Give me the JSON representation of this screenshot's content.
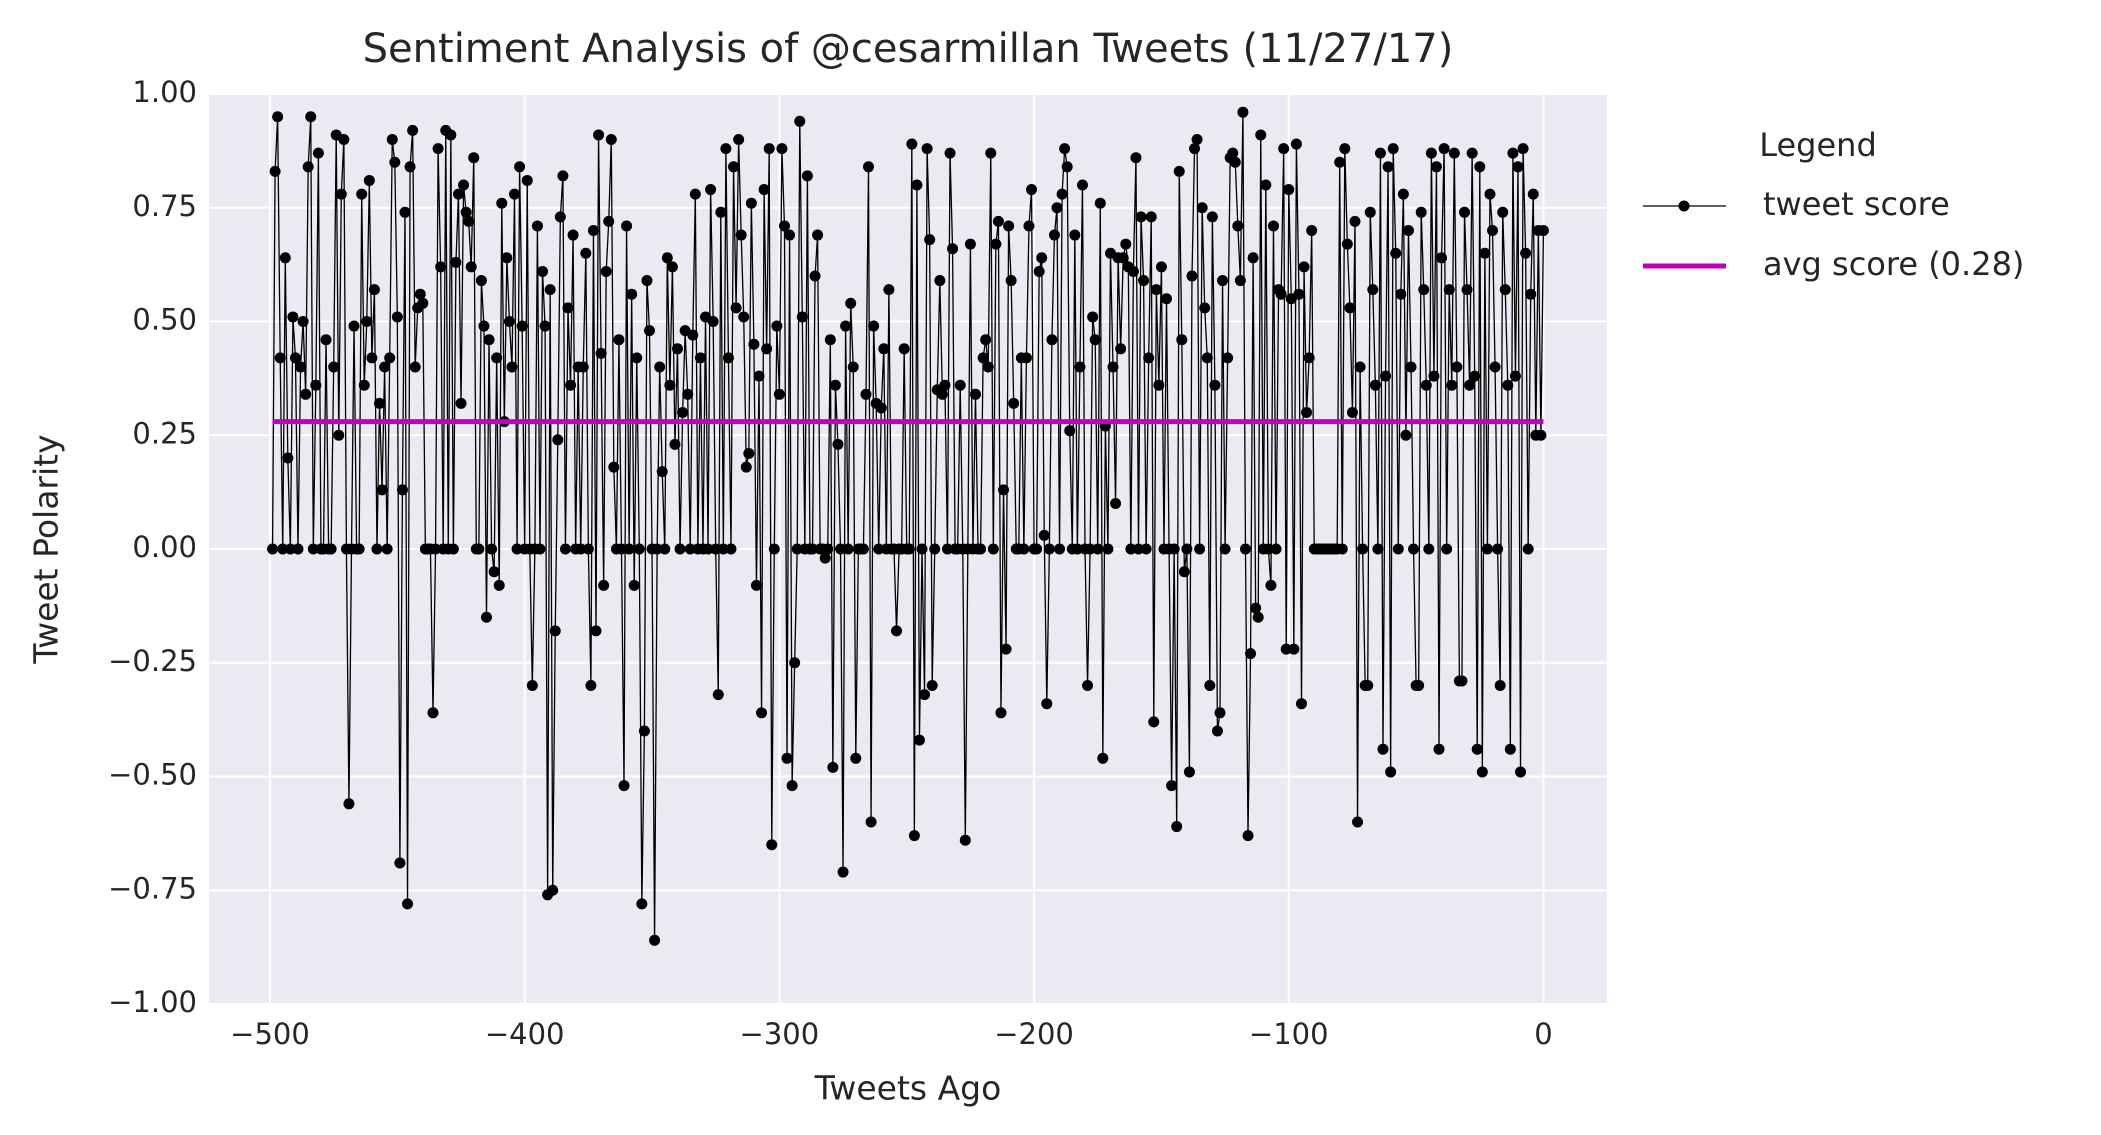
{
  "chart_data": {
    "type": "line",
    "title": "Sentiment Analysis of @cesarmillan Tweets (11/27/17)",
    "x_label": "Tweets Ago",
    "y_label": "Tweet Polarity",
    "legend_title": "Legend",
    "legend": "upper right outside",
    "grid": true,
    "xlim": [
      -523.95,
      24.95
    ],
    "ylim": [
      -1,
      1
    ],
    "xticks": [
      {
        "value": -500,
        "label": "−500"
      },
      {
        "value": -400,
        "label": "−400"
      },
      {
        "value": -300,
        "label": "−300"
      },
      {
        "value": -200,
        "label": "−200"
      },
      {
        "value": -100,
        "label": "−100"
      },
      0
    ],
    "yticks": [
      {
        "value": -1,
        "label": "−1.00"
      },
      {
        "value": -0.75,
        "label": "−0.75"
      },
      {
        "value": -0.5,
        "label": "−0.50"
      },
      {
        "value": -0.25,
        "label": "−0.25"
      },
      {
        "value": 0,
        "label": "0.00"
      },
      {
        "value": 0.25,
        "label": "0.25"
      },
      {
        "value": 0.5,
        "label": "0.50"
      },
      {
        "value": 0.75,
        "label": "0.75"
      },
      {
        "value": 1,
        "label": "1.00"
      }
    ],
    "x": [
      -499,
      -498,
      -497,
      -496,
      -495,
      -494,
      -493,
      -492,
      -491,
      -490,
      -489,
      -488,
      -487,
      -486,
      -485,
      -484,
      -483,
      -482,
      -481,
      -480,
      -479,
      -478,
      -477,
      -476,
      -475,
      -474,
      -473,
      -472,
      -471,
      -470,
      -469,
      -468,
      -467,
      -466,
      -465,
      -464,
      -463,
      -462,
      -461,
      -460,
      -459,
      -458,
      -457,
      -456,
      -455,
      -454,
      -453,
      -452,
      -451,
      -450,
      -449,
      -448,
      -447,
      -446,
      -445,
      -444,
      -443,
      -442,
      -441,
      -440,
      -439,
      -438,
      -437,
      -436,
      -435,
      -434,
      -433,
      -432,
      -431,
      -430,
      -429,
      -428,
      -427,
      -426,
      -425,
      -424,
      -423,
      -422,
      -421,
      -420,
      -419,
      -418,
      -417,
      -416,
      -415,
      -414,
      -413,
      -412,
      -411,
      -410,
      -409,
      -408,
      -407,
      -406,
      -405,
      -404,
      -403,
      -402,
      -401,
      -400,
      -399,
      -398,
      -397,
      -396,
      -395,
      -394,
      -393,
      -392,
      -391,
      -390,
      -389,
      -388,
      -387,
      -386,
      -385,
      -384,
      -383,
      -382,
      -381,
      -380,
      -379,
      -378,
      -377,
      -376,
      -375,
      -374,
      -373,
      -372,
      -371,
      -370,
      -369,
      -368,
      -367,
      -366,
      -365,
      -364,
      -363,
      -362,
      -361,
      -360,
      -359,
      -358,
      -357,
      -356,
      -355,
      -354,
      -353,
      -352,
      -351,
      -350,
      -349,
      -348,
      -347,
      -346,
      -345,
      -344,
      -343,
      -342,
      -341,
      -340,
      -339,
      -338,
      -337,
      -336,
      -335,
      -334,
      -333,
      -332,
      -331,
      -330,
      -329,
      -328,
      -327,
      -326,
      -325,
      -324,
      -323,
      -322,
      -321,
      -320,
      -319,
      -318,
      -317,
      -316,
      -315,
      -314,
      -313,
      -312,
      -311,
      -310,
      -309,
      -308,
      -307,
      -306,
      -305,
      -304,
      -303,
      -302,
      -301,
      -300,
      -299,
      -298,
      -297,
      -296,
      -295,
      -294,
      -293,
      -292,
      -291,
      -290,
      -289,
      -288,
      -287,
      -286,
      -285,
      -284,
      -283,
      -282,
      -281,
      -280,
      -279,
      -278,
      -277,
      -276,
      -275,
      -274,
      -273,
      -272,
      -271,
      -270,
      -269,
      -268,
      -267,
      -266,
      -265,
      -264,
      -263,
      -262,
      -261,
      -260,
      -259,
      -258,
      -257,
      -256,
      -255,
      -254,
      -253,
      -252,
      -251,
      -250,
      -249,
      -248,
      -247,
      -246,
      -245,
      -244,
      -243,
      -242,
      -241,
      -240,
      -239,
      -238,
      -237,
      -236,
      -235,
      -234,
      -233,
      -232,
      -231,
      -230,
      -229,
      -228,
      -227,
      -226,
      -225,
      -224,
      -223,
      -222,
      -221,
      -220,
      -219,
      -218,
      -217,
      -216,
      -215,
      -214,
      -213,
      -212,
      -211,
      -210,
      -209,
      -208,
      -207,
      -206,
      -205,
      -204,
      -203,
      -202,
      -201,
      -200,
      -199,
      -198,
      -197,
      -196,
      -195,
      -194,
      -193,
      -192,
      -191,
      -190,
      -189,
      -188,
      -187,
      -186,
      -185,
      -184,
      -183,
      -182,
      -181,
      -180,
      -179,
      -178,
      -177,
      -176,
      -175,
      -174,
      -173,
      -172,
      -171,
      -170,
      -169,
      -168,
      -167,
      -166,
      -165,
      -164,
      -163,
      -162,
      -161,
      -160,
      -159,
      -158,
      -157,
      -156,
      -155,
      -154,
      -153,
      -152,
      -151,
      -150,
      -149,
      -148,
      -147,
      -146,
      -145,
      -144,
      -143,
      -142,
      -141,
      -140,
      -139,
      -138,
      -137,
      -136,
      -135,
      -134,
      -133,
      -132,
      -131,
      -130,
      -129,
      -128,
      -127,
      -126,
      -125,
      -124,
      -123,
      -122,
      -121,
      -120,
      -119,
      -118,
      -117,
      -116,
      -115,
      -114,
      -113,
      -112,
      -111,
      -110,
      -109,
      -108,
      -107,
      -106,
      -105,
      -104,
      -103,
      -102,
      -101,
      -100,
      -99,
      -98,
      -97,
      -96,
      -95,
      -94,
      -93,
      -92,
      -91,
      -90,
      -89,
      -88,
      -87,
      -86,
      -85,
      -84,
      -83,
      -82,
      -81,
      -80,
      -79,
      -78,
      -77,
      -76,
      -75,
      -74,
      -73,
      -72,
      -71,
      -70,
      -69,
      -68,
      -67,
      -66,
      -65,
      -64,
      -63,
      -62,
      -61,
      -60,
      -59,
      -58,
      -57,
      -56,
      -55,
      -54,
      -53,
      -52,
      -51,
      -50,
      -49,
      -48,
      -47,
      -46,
      -45,
      -44,
      -43,
      -42,
      -41,
      -40,
      -39,
      -38,
      -37,
      -36,
      -35,
      -34,
      -33,
      -32,
      -31,
      -30,
      -29,
      -28,
      -27,
      -26,
      -25,
      -24,
      -23,
      -22,
      -21,
      -20,
      -19,
      -18,
      -17,
      -16,
      -15,
      -14,
      -13,
      -12,
      -11,
      -10,
      -9,
      -8,
      -7,
      -6,
      -5,
      -4,
      -3,
      -2,
      -1,
      0
    ],
    "series": [
      {
        "name": "tweet score",
        "color": "#000000",
        "values": [
          0,
          0.83,
          0.95,
          0.42,
          0,
          0.64,
          0.2,
          0,
          0.51,
          0.42,
          0,
          0.4,
          0.5,
          0.34,
          0.84,
          0.95,
          0,
          0.36,
          0.87,
          0,
          0,
          0.46,
          0,
          0,
          0.4,
          0.91,
          0.25,
          0.78,
          0.9,
          0,
          -0.56,
          0,
          0.49,
          0,
          0,
          0.78,
          0.36,
          0.5,
          0.81,
          0.42,
          0.57,
          0,
          0.32,
          0.13,
          0.4,
          0,
          0.42,
          0.9,
          0.85,
          0.51,
          -0.69,
          0.13,
          0.74,
          -0.78,
          0.84,
          0.92,
          0.4,
          0.53,
          0.56,
          0.54,
          0,
          0,
          0,
          -0.36,
          0,
          0.88,
          0.62,
          0,
          0.92,
          0,
          0.91,
          0,
          0.63,
          0.78,
          0.32,
          0.8,
          0.74,
          0.72,
          0.62,
          0.86,
          0,
          0,
          0.59,
          0.49,
          -0.15,
          0.46,
          0,
          -0.05,
          0.42,
          -0.08,
          0.76,
          0.28,
          0.64,
          0.5,
          0.4,
          0.78,
          0,
          0.84,
          0.49,
          0,
          0.81,
          0,
          -0.3,
          0,
          0.71,
          0,
          0.61,
          0.49,
          -0.76,
          0.57,
          -0.75,
          -0.18,
          0.24,
          0.73,
          0.82,
          0,
          0.53,
          0.36,
          0.69,
          0,
          0.4,
          0,
          0.4,
          0.65,
          0,
          -0.3,
          0.7,
          -0.18,
          0.91,
          0.43,
          -0.08,
          0.61,
          0.72,
          0.9,
          0.18,
          0,
          0.46,
          0,
          -0.52,
          0.71,
          0,
          0.56,
          -0.08,
          0.42,
          0,
          -0.78,
          -0.4,
          0.59,
          0.48,
          0,
          -0.86,
          0,
          0.4,
          0.17,
          0,
          0.64,
          0.36,
          0.62,
          0.23,
          0.44,
          0,
          0.3,
          0.48,
          0.34,
          0,
          0.47,
          0.78,
          0,
          0.42,
          0,
          0.51,
          0,
          0.79,
          0.5,
          0,
          -0.32,
          0.74,
          0,
          0.88,
          0.42,
          0,
          0.84,
          0.53,
          0.9,
          0.69,
          0.51,
          0.18,
          0.21,
          0.76,
          0.45,
          -0.08,
          0.38,
          -0.36,
          0.79,
          0.44,
          0.88,
          -0.65,
          0,
          0.49,
          0.34,
          0.88,
          0.71,
          -0.46,
          0.69,
          -0.52,
          -0.25,
          0,
          0.94,
          0.51,
          0,
          0.82,
          0,
          0,
          0.6,
          0.69,
          0,
          0,
          -0.02,
          0,
          0.46,
          -0.48,
          0.36,
          0.23,
          0,
          -0.71,
          0.49,
          0,
          0.54,
          0.4,
          -0.46,
          0,
          0,
          0,
          0.34,
          0.84,
          -0.6,
          0.49,
          0.32,
          0,
          0.31,
          0.44,
          0,
          0.57,
          0,
          0,
          -0.18,
          0,
          0,
          0.44,
          0,
          0,
          0.89,
          -0.63,
          0.8,
          -0.42,
          0,
          -0.32,
          0.88,
          0.68,
          -0.3,
          0,
          0.35,
          0.59,
          0.34,
          0.36,
          0,
          0.87,
          0.66,
          0,
          0,
          0.36,
          0,
          -0.64,
          0,
          0.67,
          0,
          0.34,
          0,
          0,
          0.42,
          0.46,
          0.4,
          0.87,
          0,
          0.67,
          0.72,
          -0.36,
          0.13,
          -0.22,
          0.71,
          0.59,
          0.32,
          0,
          0,
          0.42,
          0,
          0.42,
          0.71,
          0.79,
          0,
          0,
          0.61,
          0.64,
          0.03,
          -0.34,
          0,
          0.46,
          0.69,
          0.75,
          0,
          0.78,
          0.88,
          0.84,
          0.26,
          0,
          0.69,
          0,
          0.4,
          0.8,
          0,
          -0.3,
          0,
          0.51,
          0.46,
          0,
          0.76,
          -0.46,
          0.27,
          0,
          0.65,
          0.4,
          0.1,
          0.64,
          0.44,
          0.64,
          0.67,
          0.62,
          0,
          0.61,
          0.86,
          0,
          0.73,
          0.59,
          0,
          0.42,
          0.73,
          -0.38,
          0.57,
          0.36,
          0.62,
          0,
          0.55,
          0,
          -0.52,
          0,
          -0.61,
          0.83,
          0.46,
          -0.05,
          0,
          -0.49,
          0.6,
          0.88,
          0.9,
          0,
          0.75,
          0.53,
          0.42,
          -0.3,
          0.73,
          0.36,
          -0.4,
          -0.36,
          0.59,
          0,
          0.42,
          0.86,
          0.87,
          0.85,
          0.71,
          0.59,
          0.96,
          0,
          -0.63,
          -0.23,
          0.64,
          -0.13,
          -0.15,
          0.91,
          0,
          0.8,
          0,
          -0.08,
          0.71,
          0,
          0.57,
          0.56,
          0.88,
          -0.22,
          0.79,
          0.55,
          -0.22,
          0.89,
          0.56,
          -0.34,
          0.62,
          0.3,
          0.42,
          0.7,
          0,
          0,
          0,
          0,
          0,
          0,
          0,
          0,
          0,
          0,
          0.85,
          0,
          0.88,
          0.67,
          0.53,
          0.3,
          0.72,
          -0.6,
          0.4,
          0,
          -0.3,
          -0.3,
          0.74,
          0.57,
          0.36,
          0,
          0.87,
          -0.44,
          0.38,
          0.84,
          -0.49,
          0.88,
          0.65,
          0,
          0.56,
          0.78,
          0.25,
          0.7,
          0.4,
          0,
          -0.3,
          -0.3,
          0.74,
          0.57,
          0.36,
          0,
          0.87,
          0.38,
          0.84,
          -0.44,
          0.64,
          0.88,
          0,
          0.57,
          0.36,
          0.87,
          0.4,
          -0.29,
          -0.29,
          0.74,
          0.57,
          0.36,
          0.87,
          0.38,
          -0.44,
          0.84,
          -0.49,
          0.65,
          0,
          0.78,
          0.7,
          0.4,
          0,
          -0.3,
          0.74,
          0.57,
          0.36,
          -0.44,
          0.87,
          0.38,
          0.84,
          -0.49,
          0.88,
          0.65,
          0,
          0.56,
          0.78,
          0.25,
          0.7,
          0.25,
          0.7
        ]
      }
    ],
    "avg_line": {
      "name": "avg score (0.28)",
      "value": 0.28,
      "color": "#bf00bf"
    }
  }
}
